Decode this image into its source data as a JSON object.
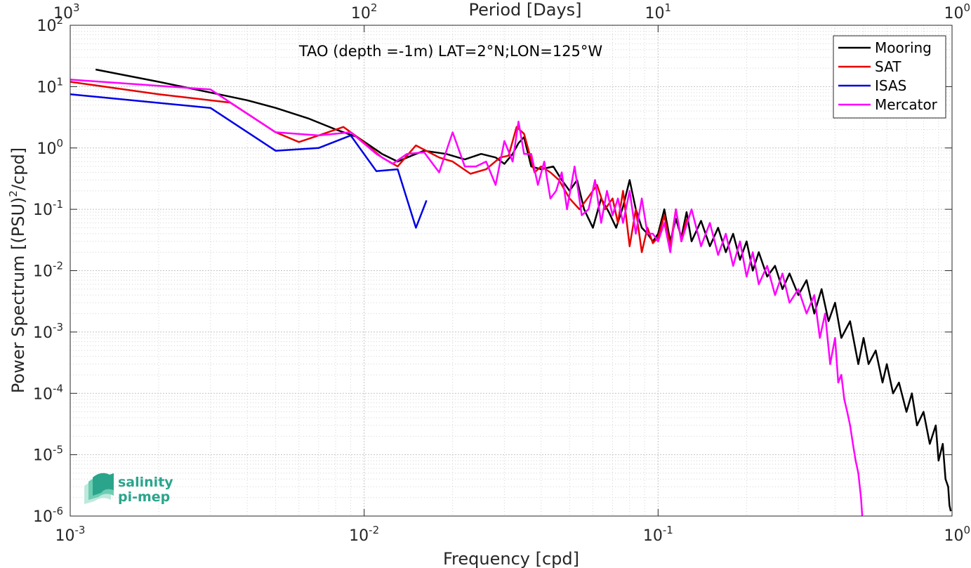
{
  "chart_data": {
    "type": "line",
    "title": "TAO (depth =-1m) LAT=2°N;LON=125°W",
    "xlabel": "Frequency [cpd]",
    "ylabel": "Power Spectrum [(PSU)²/cpd]",
    "ylabel_main": "Power Spectrum [(PSU)",
    "ylabel_sup": "2",
    "ylabel_tail": "/cpd]",
    "top_xlabel": "Period [Days]",
    "x_scale": "log",
    "y_scale": "log",
    "xlim": [
      0.001,
      1
    ],
    "ylim": [
      1e-06,
      100
    ],
    "grid": true,
    "legend_position": "top-right",
    "x_ticks": [
      {
        "base": "10",
        "exp": "-3",
        "value": 0.001
      },
      {
        "base": "10",
        "exp": "-2",
        "value": 0.01
      },
      {
        "base": "10",
        "exp": "-1",
        "value": 0.1
      },
      {
        "base": "10",
        "exp": "0",
        "value": 1
      }
    ],
    "top_ticks": [
      {
        "base": "10",
        "exp": "3",
        "freq": 0.001
      },
      {
        "base": "10",
        "exp": "2",
        "freq": 0.01
      },
      {
        "base": "10",
        "exp": "1",
        "freq": 0.1
      },
      {
        "base": "10",
        "exp": "0",
        "freq": 1
      }
    ],
    "y_ticks": [
      {
        "base": "10",
        "exp": "2",
        "value": 100
      },
      {
        "base": "10",
        "exp": "1",
        "value": 10
      },
      {
        "base": "10",
        "exp": "0",
        "value": 1
      },
      {
        "base": "10",
        "exp": "-1",
        "value": 0.1
      },
      {
        "base": "10",
        "exp": "-2",
        "value": 0.01
      },
      {
        "base": "10",
        "exp": "-3",
        "value": 0.001
      },
      {
        "base": "10",
        "exp": "-4",
        "value": 0.0001
      },
      {
        "base": "10",
        "exp": "-5",
        "value": 1e-05
      },
      {
        "base": "10",
        "exp": "-6",
        "value": 1e-06
      }
    ],
    "series": [
      {
        "name": "Mooring",
        "color": "#000000",
        "points": [
          [
            0.00122,
            19
          ],
          [
            0.002,
            12
          ],
          [
            0.003,
            8
          ],
          [
            0.004,
            6
          ],
          [
            0.005,
            4.5
          ],
          [
            0.0065,
            3.0
          ],
          [
            0.008,
            2.0
          ],
          [
            0.0095,
            1.5
          ],
          [
            0.0115,
            0.8
          ],
          [
            0.013,
            0.6
          ],
          [
            0.0145,
            0.75
          ],
          [
            0.016,
            0.9
          ],
          [
            0.019,
            0.8
          ],
          [
            0.022,
            0.65
          ],
          [
            0.025,
            0.8
          ],
          [
            0.028,
            0.7
          ],
          [
            0.03,
            0.55
          ],
          [
            0.032,
            0.8
          ],
          [
            0.0335,
            1.2
          ],
          [
            0.035,
            1.5
          ],
          [
            0.037,
            0.5
          ],
          [
            0.04,
            0.45
          ],
          [
            0.044,
            0.5
          ],
          [
            0.047,
            0.3
          ],
          [
            0.05,
            0.2
          ],
          [
            0.053,
            0.3
          ],
          [
            0.056,
            0.1
          ],
          [
            0.06,
            0.05
          ],
          [
            0.064,
            0.15
          ],
          [
            0.068,
            0.09
          ],
          [
            0.072,
            0.05
          ],
          [
            0.076,
            0.11
          ],
          [
            0.08,
            0.3
          ],
          [
            0.084,
            0.1
          ],
          [
            0.088,
            0.05
          ],
          [
            0.092,
            0.04
          ],
          [
            0.096,
            0.03
          ],
          [
            0.1,
            0.04
          ],
          [
            0.105,
            0.1
          ],
          [
            0.11,
            0.03
          ],
          [
            0.115,
            0.07
          ],
          [
            0.12,
            0.035
          ],
          [
            0.125,
            0.09
          ],
          [
            0.13,
            0.03
          ],
          [
            0.14,
            0.065
          ],
          [
            0.15,
            0.025
          ],
          [
            0.16,
            0.05
          ],
          [
            0.17,
            0.02
          ],
          [
            0.18,
            0.04
          ],
          [
            0.19,
            0.015
          ],
          [
            0.2,
            0.03
          ],
          [
            0.21,
            0.01
          ],
          [
            0.22,
            0.02
          ],
          [
            0.235,
            0.008
          ],
          [
            0.25,
            0.012
          ],
          [
            0.265,
            0.005
          ],
          [
            0.28,
            0.009
          ],
          [
            0.3,
            0.004
          ],
          [
            0.32,
            0.007
          ],
          [
            0.34,
            0.002
          ],
          [
            0.36,
            0.005
          ],
          [
            0.38,
            0.0015
          ],
          [
            0.4,
            0.003
          ],
          [
            0.42,
            0.0008
          ],
          [
            0.45,
            0.0015
          ],
          [
            0.48,
            0.0003
          ],
          [
            0.5,
            0.0008
          ],
          [
            0.52,
            0.0003
          ],
          [
            0.55,
            0.0005
          ],
          [
            0.58,
            0.00015
          ],
          [
            0.6,
            0.0003
          ],
          [
            0.63,
            0.0001
          ],
          [
            0.66,
            0.00015
          ],
          [
            0.7,
            5e-05
          ],
          [
            0.73,
            0.0001
          ],
          [
            0.76,
            3e-05
          ],
          [
            0.8,
            5e-05
          ],
          [
            0.84,
            1.5e-05
          ],
          [
            0.88,
            3e-05
          ],
          [
            0.9,
            8e-06
          ],
          [
            0.93,
            1.5e-05
          ],
          [
            0.95,
            4e-06
          ],
          [
            0.97,
            3e-06
          ],
          [
            0.98,
            1.5e-06
          ],
          [
            0.99,
            1.2e-06
          ]
        ]
      },
      {
        "name": "SAT",
        "color": "#e60000",
        "points": [
          [
            0.001,
            12
          ],
          [
            0.002,
            7.5
          ],
          [
            0.0035,
            5.5
          ],
          [
            0.005,
            1.8
          ],
          [
            0.006,
            1.25
          ],
          [
            0.007,
            1.6
          ],
          [
            0.0085,
            2.2
          ],
          [
            0.0095,
            1.5
          ],
          [
            0.0115,
            0.7
          ],
          [
            0.013,
            0.5
          ],
          [
            0.015,
            1.1
          ],
          [
            0.018,
            0.7
          ],
          [
            0.02,
            0.6
          ],
          [
            0.023,
            0.38
          ],
          [
            0.026,
            0.45
          ],
          [
            0.029,
            0.7
          ],
          [
            0.031,
            0.75
          ],
          [
            0.033,
            2.2
          ],
          [
            0.035,
            1.7
          ],
          [
            0.038,
            0.4
          ],
          [
            0.04,
            0.5
          ],
          [
            0.043,
            0.4
          ],
          [
            0.046,
            0.3
          ],
          [
            0.05,
            0.15
          ],
          [
            0.054,
            0.1
          ],
          [
            0.058,
            0.16
          ],
          [
            0.062,
            0.25
          ],
          [
            0.066,
            0.1
          ],
          [
            0.07,
            0.15
          ],
          [
            0.073,
            0.06
          ],
          [
            0.076,
            0.2
          ],
          [
            0.08,
            0.025
          ],
          [
            0.084,
            0.1
          ],
          [
            0.088,
            0.02
          ],
          [
            0.092,
            0.05
          ],
          [
            0.096,
            0.028
          ],
          [
            0.1,
            0.035
          ],
          [
            0.105,
            0.08
          ],
          [
            0.11,
            0.025
          ],
          [
            0.115,
            0.1
          ],
          [
            0.12,
            0.03
          ],
          [
            0.125,
            0.07
          ]
        ]
      },
      {
        "name": "ISAS",
        "color": "#0000e6",
        "points": [
          [
            0.001,
            7.5
          ],
          [
            0.003,
            4.5
          ],
          [
            0.005,
            0.9
          ],
          [
            0.007,
            1.0
          ],
          [
            0.009,
            1.6
          ],
          [
            0.011,
            0.42
          ],
          [
            0.013,
            0.45
          ],
          [
            0.015,
            0.05
          ],
          [
            0.0163,
            0.14
          ]
        ]
      },
      {
        "name": "Mercator",
        "color": "#ff00ff",
        "points": [
          [
            0.001,
            13
          ],
          [
            0.003,
            9
          ],
          [
            0.005,
            1.8
          ],
          [
            0.007,
            1.6
          ],
          [
            0.009,
            1.8
          ],
          [
            0.011,
            0.8
          ],
          [
            0.0125,
            0.55
          ],
          [
            0.014,
            0.8
          ],
          [
            0.016,
            0.85
          ],
          [
            0.018,
            0.4
          ],
          [
            0.02,
            1.8
          ],
          [
            0.022,
            0.5
          ],
          [
            0.024,
            0.5
          ],
          [
            0.026,
            0.6
          ],
          [
            0.028,
            0.25
          ],
          [
            0.03,
            1.3
          ],
          [
            0.032,
            0.6
          ],
          [
            0.0335,
            2.7
          ],
          [
            0.035,
            0.8
          ],
          [
            0.037,
            0.8
          ],
          [
            0.039,
            0.25
          ],
          [
            0.041,
            0.6
          ],
          [
            0.043,
            0.15
          ],
          [
            0.045,
            0.2
          ],
          [
            0.047,
            0.4
          ],
          [
            0.049,
            0.1
          ],
          [
            0.052,
            0.5
          ],
          [
            0.055,
            0.08
          ],
          [
            0.058,
            0.1
          ],
          [
            0.061,
            0.3
          ],
          [
            0.064,
            0.06
          ],
          [
            0.067,
            0.2
          ],
          [
            0.07,
            0.08
          ],
          [
            0.073,
            0.15
          ],
          [
            0.076,
            0.06
          ],
          [
            0.08,
            0.2
          ],
          [
            0.084,
            0.04
          ],
          [
            0.088,
            0.15
          ],
          [
            0.092,
            0.04
          ],
          [
            0.096,
            0.04
          ],
          [
            0.1,
            0.03
          ],
          [
            0.105,
            0.06
          ],
          [
            0.11,
            0.02
          ],
          [
            0.115,
            0.1
          ],
          [
            0.12,
            0.03
          ],
          [
            0.13,
            0.1
          ],
          [
            0.14,
            0.025
          ],
          [
            0.15,
            0.06
          ],
          [
            0.16,
            0.018
          ],
          [
            0.17,
            0.04
          ],
          [
            0.18,
            0.012
          ],
          [
            0.19,
            0.03
          ],
          [
            0.2,
            0.008
          ],
          [
            0.21,
            0.02
          ],
          [
            0.22,
            0.006
          ],
          [
            0.235,
            0.012
          ],
          [
            0.25,
            0.004
          ],
          [
            0.265,
            0.009
          ],
          [
            0.28,
            0.003
          ],
          [
            0.3,
            0.005
          ],
          [
            0.32,
            0.002
          ],
          [
            0.34,
            0.004
          ],
          [
            0.355,
            0.0008
          ],
          [
            0.37,
            0.002
          ],
          [
            0.385,
            0.0003
          ],
          [
            0.4,
            0.0008
          ],
          [
            0.41,
            0.00015
          ],
          [
            0.42,
            0.0002
          ],
          [
            0.43,
            8e-05
          ],
          [
            0.44,
            5e-05
          ],
          [
            0.45,
            3e-05
          ],
          [
            0.46,
            1.5e-05
          ],
          [
            0.47,
            8e-06
          ],
          [
            0.48,
            5e-06
          ],
          [
            0.49,
            2e-06
          ],
          [
            0.495,
            1e-06
          ]
        ]
      }
    ]
  },
  "logo": {
    "line1": "salinity",
    "line2": "pi-mep",
    "color": "#2aa58c"
  }
}
